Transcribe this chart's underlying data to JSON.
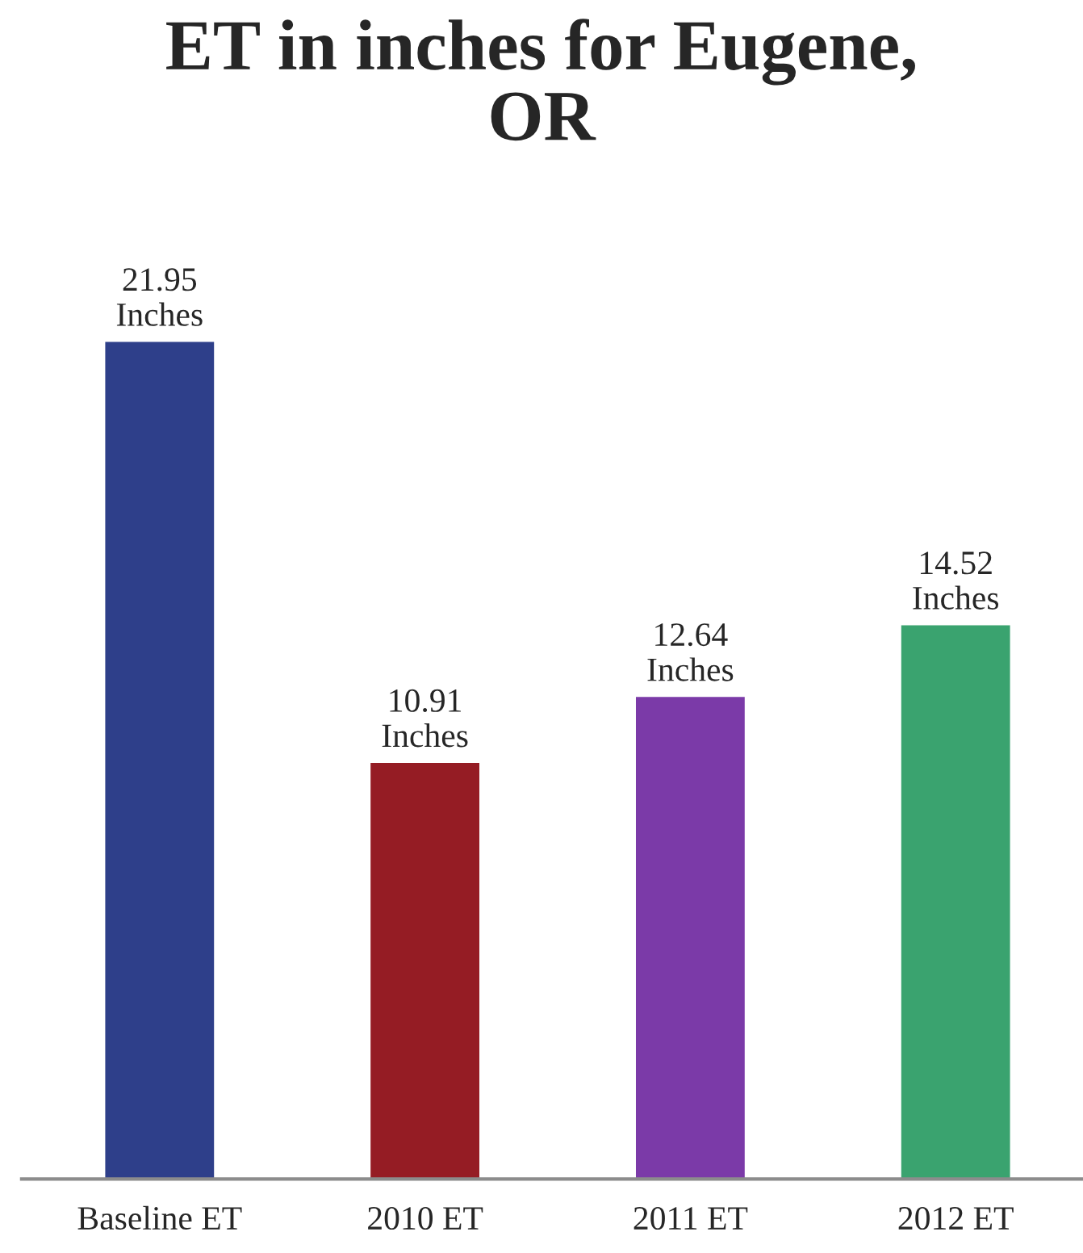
{
  "chart_data": {
    "type": "bar",
    "title": "ET in inches for Eugene,\nOR",
    "categories": [
      "Baseline ET",
      "2010 ET",
      "2011 ET",
      "2012 ET"
    ],
    "values": [
      21.95,
      10.91,
      12.64,
      14.52
    ],
    "colors": [
      "#2e3f8a",
      "#951c24",
      "#7b3aa8",
      "#3aa36f"
    ],
    "value_labels": [
      "21.95\nInches",
      "10.91\nInches",
      "12.64\nInches",
      "14.52\nInches"
    ],
    "grid": false,
    "legend": false
  }
}
